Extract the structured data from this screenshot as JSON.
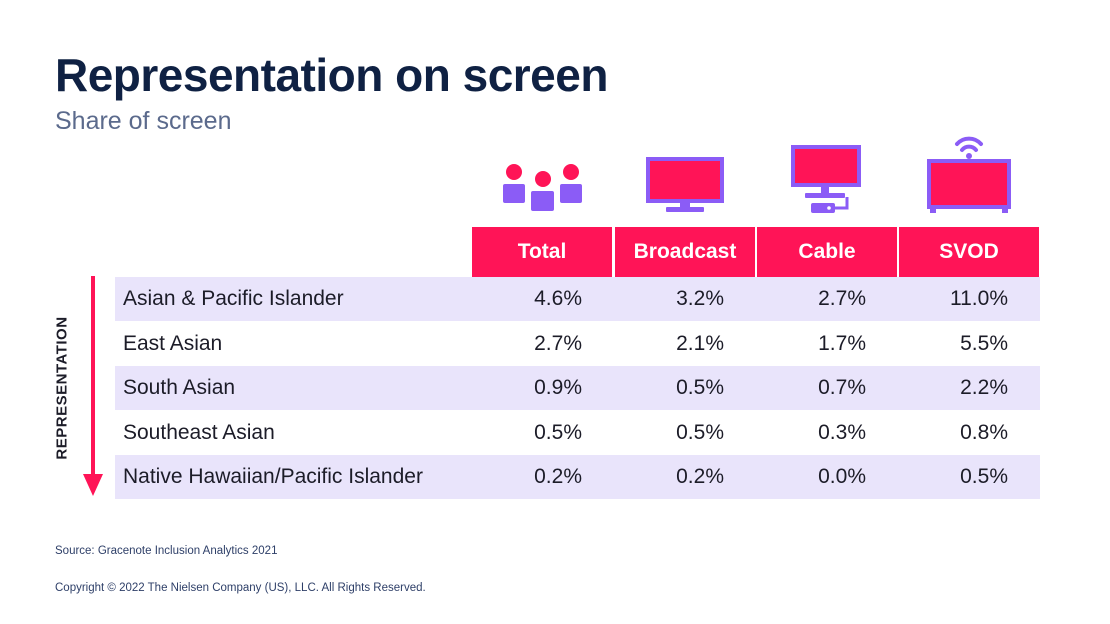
{
  "colors": {
    "accent": "#ff1457",
    "icon_purple": "#8b5cf6",
    "row_shade": "#e9e4fb",
    "title": "#0f2143",
    "subtitle": "#5b6a8c"
  },
  "chart_data": {
    "type": "table",
    "title": "Representation on screen",
    "subtitle": "Share of screen",
    "axis_label": "REPRESENTATION",
    "columns": [
      {
        "label": "Total",
        "icon": "people-group-icon"
      },
      {
        "label": "Broadcast",
        "icon": "television-icon"
      },
      {
        "label": "Cable",
        "icon": "tv-cable-box-icon"
      },
      {
        "label": "SVOD",
        "icon": "streaming-tv-icon"
      }
    ],
    "rows": [
      {
        "label": "Asian & Pacific Islander",
        "values": [
          "4.6%",
          "3.2%",
          "2.7%",
          "11.0%"
        ]
      },
      {
        "label": "East Asian",
        "values": [
          "2.7%",
          "2.1%",
          "1.7%",
          "5.5%"
        ]
      },
      {
        "label": "South Asian",
        "values": [
          "0.9%",
          "0.5%",
          "0.7%",
          "2.2%"
        ]
      },
      {
        "label": "Southeast Asian",
        "values": [
          "0.5%",
          "0.5%",
          "0.3%",
          "0.8%"
        ]
      },
      {
        "label": "Native Hawaiian/Pacific Islander",
        "values": [
          "0.2%",
          "0.2%",
          "0.0%",
          "0.5%"
        ]
      }
    ]
  },
  "footer": {
    "source": "Source: Gracenote Inclusion Analytics 2021",
    "copyright": "Copyright © 2022 The Nielsen Company (US), LLC. All Rights Reserved."
  }
}
